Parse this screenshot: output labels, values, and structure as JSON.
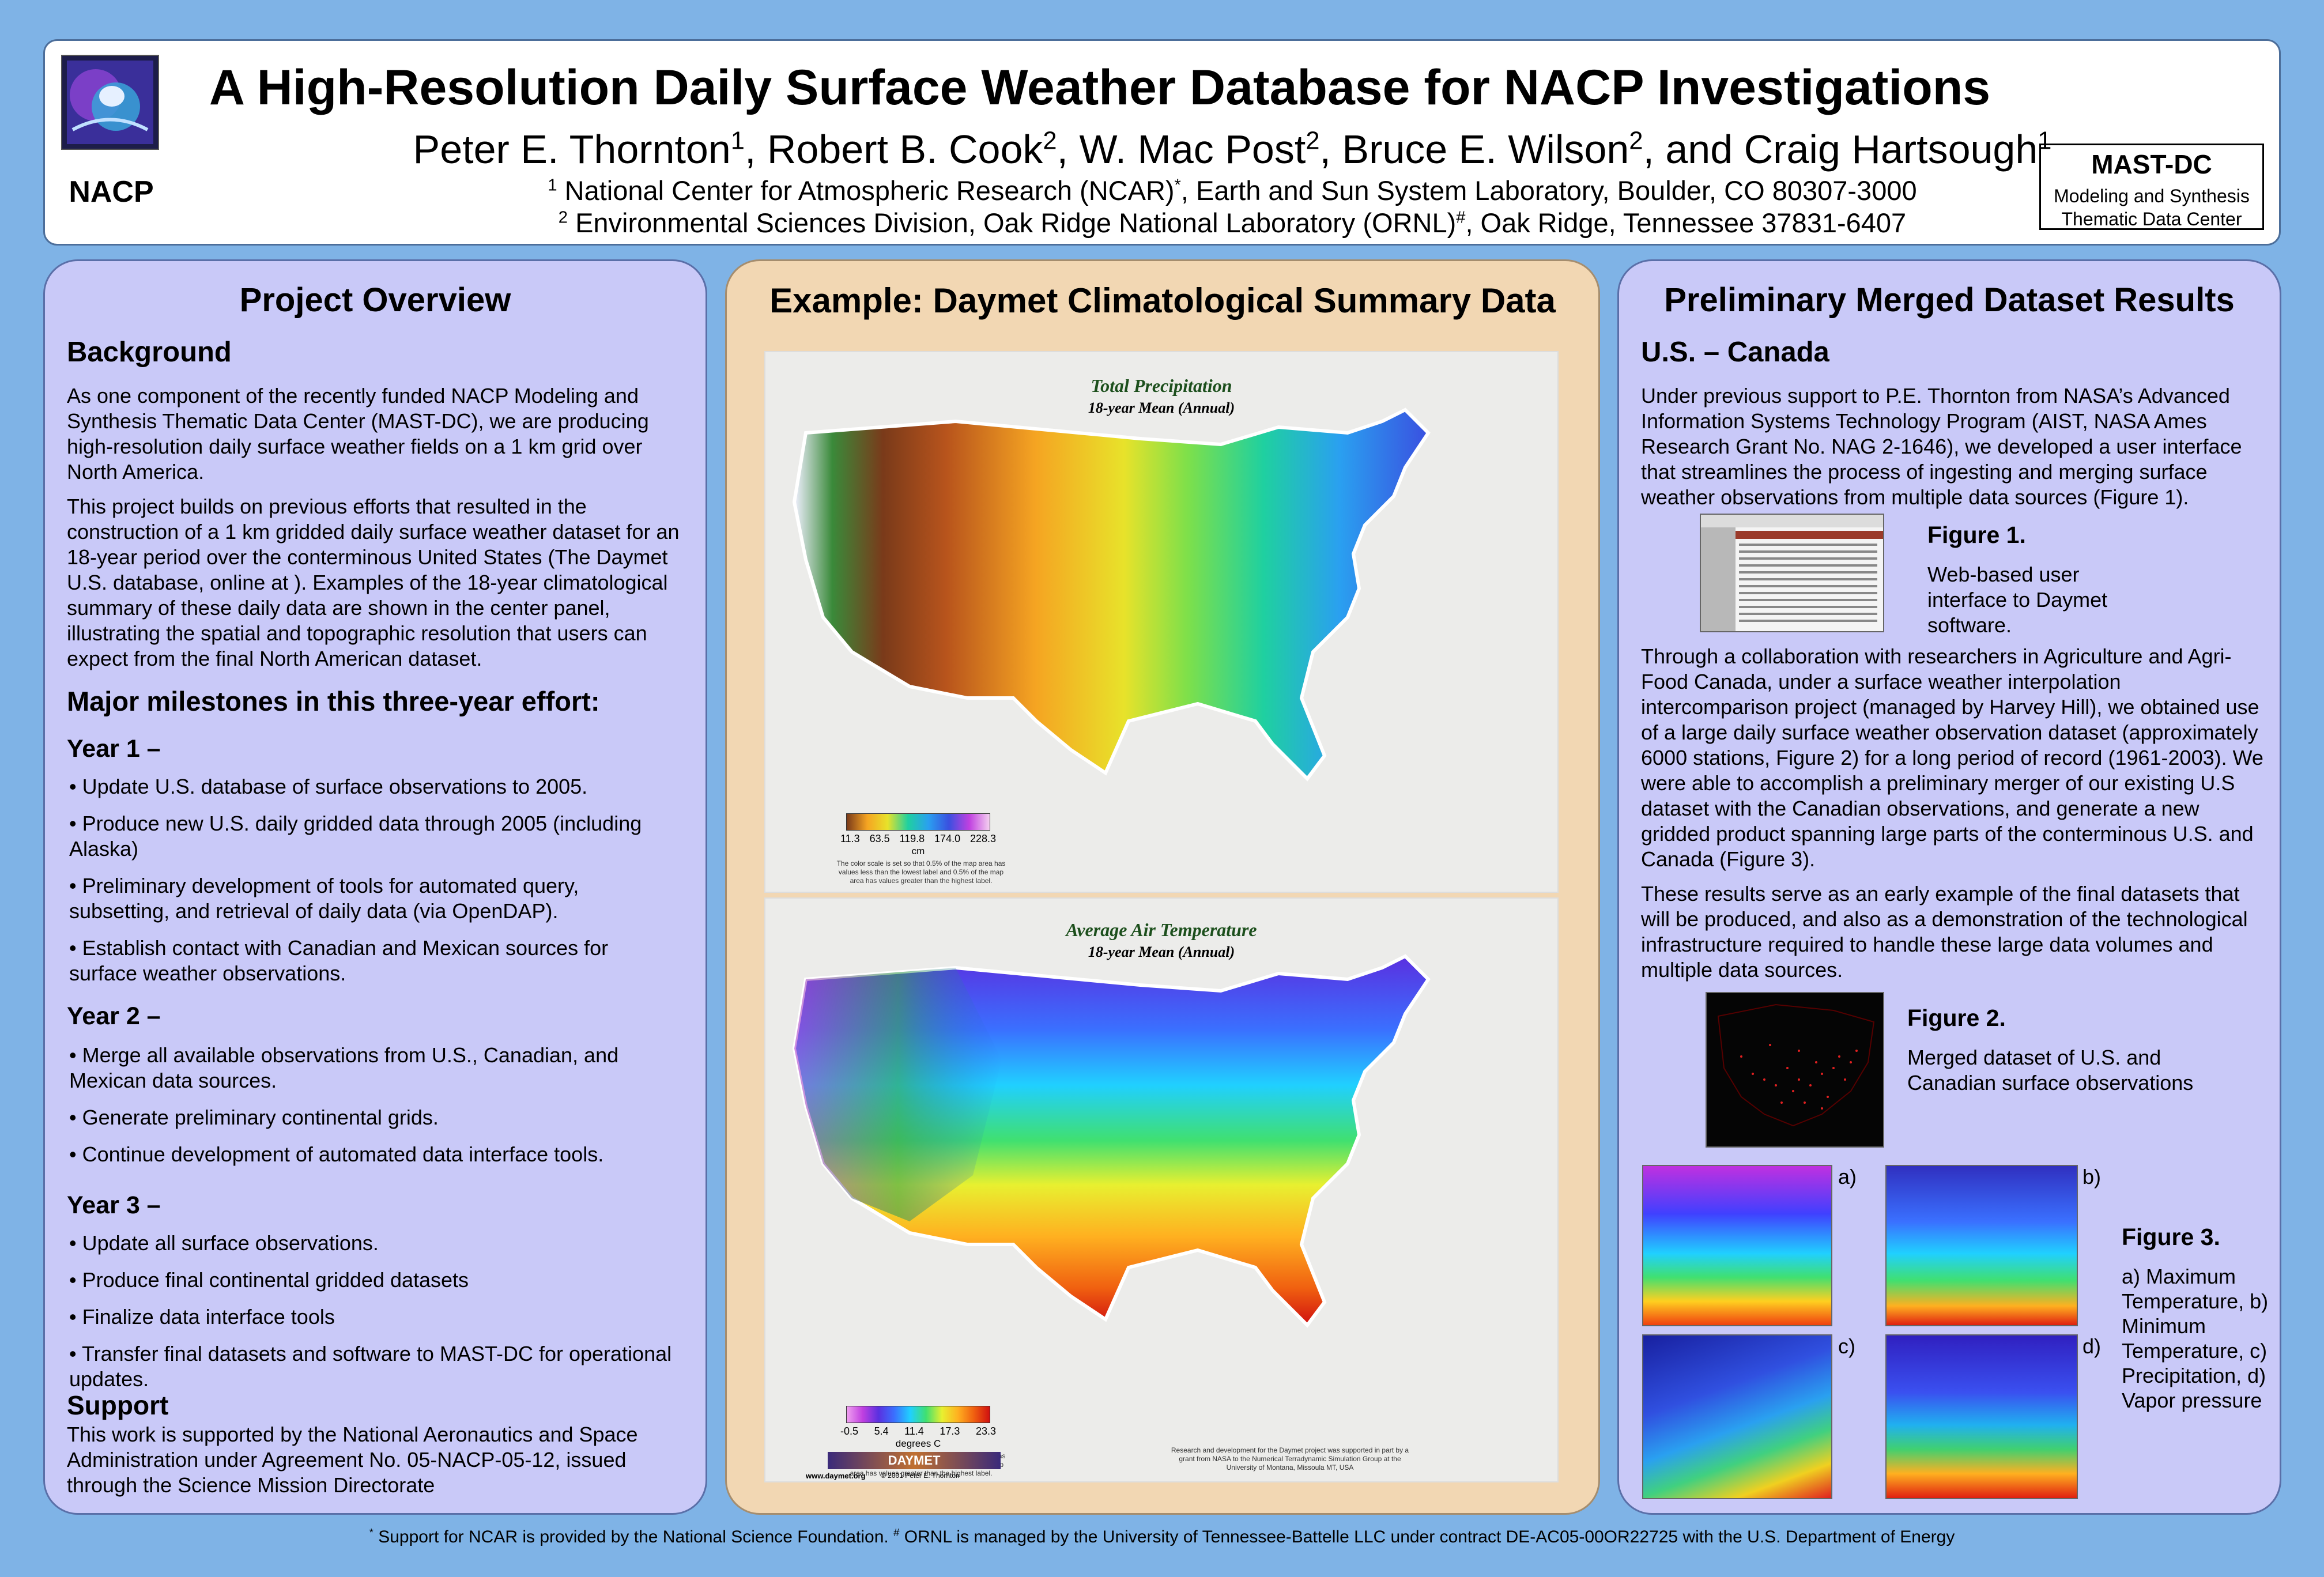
{
  "header": {
    "title": "A High-Resolution Daily Surface Weather Database for NACP Investigations",
    "logo_label": "NACP",
    "authors": [
      {
        "name": "Peter E. Thornton",
        "sup": "1"
      },
      {
        "name": "Robert B. Cook",
        "sup": "2"
      },
      {
        "name": "W. Mac Post",
        "sup": "2"
      },
      {
        "name": "Bruce E. Wilson",
        "sup": "2"
      },
      {
        "name": "and Craig Hartsough",
        "sup": "1"
      }
    ],
    "affiliation1_sup": "1",
    "affiliation1": "National Center for Atmospheric Research (NCAR)",
    "affiliation1_mark": "*",
    "affiliation1_rest": ", Earth and Sun System Laboratory, Boulder, CO 80307-3000",
    "affiliation2_sup": "2",
    "affiliation2": "Environmental Sciences Division, Oak Ridge National Laboratory (ORNL)",
    "affiliation2_mark": "#",
    "affiliation2_rest": ", Oak Ridge, Tennessee 37831-6407",
    "mastdc_title": "MAST-DC",
    "mastdc_line1": "Modeling and Synthesis",
    "mastdc_line2": "Thematic Data Center"
  },
  "left": {
    "title": "Project Overview",
    "background_heading": "Background",
    "para1": "As one component of the recently funded NACP Modeling and Synthesis Thematic Data Center (MAST-DC), we are producing high-resolution daily surface weather fields on a 1 km grid over North America.",
    "para2": "This project builds on previous efforts that resulted in the construction of a 1 km gridded daily surface weather dataset for an 18-year period over the conterminous United States (The Daymet U.S. database, online at                              ).  Examples of the 18-year climatological summary of these daily data are shown in the center panel, illustrating the spatial and topographic resolution that users can expect from the final North American dataset.",
    "milestones_heading": "Major milestones in this three-year effort:",
    "year1": "Year 1 –",
    "year1_items": [
      "Update U.S. database of surface observations to 2005.",
      "Produce new U.S. daily gridded data through 2005 (including Alaska)",
      "Preliminary development of tools for automated query, subsetting, and retrieval of daily data (via OpenDAP).",
      "Establish contact with Canadian and Mexican sources for surface weather observations."
    ],
    "year2": "Year 2 –",
    "year2_items": [
      "Merge all available observations from U.S., Canadian, and Mexican data sources.",
      "Generate preliminary continental grids.",
      "Continue development of automated data interface tools."
    ],
    "year3": "Year 3 –",
    "year3_items": [
      "Update all surface observations.",
      "Produce final continental gridded datasets",
      "Finalize data interface tools",
      "Transfer final datasets and software to MAST-DC for operational updates."
    ],
    "support_heading": "Support",
    "support_text": "This work is supported by the National Aeronautics and Space Administration under Agreement No. 05-NACP-05-12, issued through the Science Mission Directorate"
  },
  "center": {
    "title": "Example: Daymet Climatological Summary Data",
    "map1_title": "Total Precipitation",
    "map1_sub": "18-year Mean (Annual)",
    "map1_ticks": [
      "11.3",
      "63.5",
      "119.8",
      "174.0",
      "228.3"
    ],
    "map1_unit": "cm",
    "map1_note": "The color scale is set so that 0.5% of the map area has values less than the lowest label and 0.5% of the map area has values greater than the highest label.",
    "map2_title": "Average Air Temperature",
    "map2_sub": "18-year Mean (Annual)",
    "map2_ticks": [
      "-0.5",
      "5.4",
      "11.4",
      "17.3",
      "23.3"
    ],
    "map2_unit": "degrees C",
    "map2_note": "The color scale is set so that 0.5% of the map area has values less than the lowest label and 0.5% of the map area has values greater than the highest label.",
    "map2_credit": "Research and development for the Daymet project was supported in part by a grant from NASA to the Numerical Terradynamic Simulation Group at the University of Montana, Missoula MT, USA",
    "daymet_url": "www.daymet.org",
    "daymet_copyright": "© 2001 Peter E. Thornton",
    "daymet_logo": "DAYMET"
  },
  "right": {
    "title": "Preliminary Merged Dataset Results",
    "heading": "U.S. – Canada",
    "para1": "Under previous support to P.E. Thornton from NASA’s Advanced Information Systems Technology Program (AIST, NASA Ames Research Grant No. NAG 2-1646), we developed a user interface that streamlines the process of ingesting and merging surface weather observations from multiple data sources (Figure 1).",
    "fig1_title": "Figure 1.",
    "fig1_caption": "Web-based user interface to Daymet software.",
    "para2": "Through a collaboration with researchers in Agriculture and Agri-Food Canada, under a surface weather interpolation intercomparison project (managed by Harvey Hill), we obtained use of a large daily surface weather observation dataset (approximately 6000 stations, Figure 2) for a long period of record (1961-2003). We were able to accomplish a preliminary merger of our existing U.S dataset with the Canadian observations, and generate a new gridded product spanning large parts of the conterminous U.S. and Canada (Figure 3).",
    "para3": "These results serve as an early example of the final datasets that will be produced, and also as a demonstration of the technological infrastructure required to handle these large data volumes and multiple data sources.",
    "fig2_title": "Figure 2.",
    "fig2_caption": "Merged dataset of U.S. and Canadian surface observations",
    "fig3_title": "Figure 3.",
    "fig3_caption": "a) Maximum Temperature, b) Minimum Temperature, c) Precipitation, d) Vapor pressure",
    "fig3_labels": [
      "a)",
      "b)",
      "c)",
      "d)"
    ]
  },
  "footer": {
    "mark1": "*",
    "text1": " Support for NCAR is provided by the National Science Foundation.   ",
    "mark2": "#",
    "text2": " ORNL is managed by the University of Tennessee-Battelle LLC under contract DE-AC05-00OR22725 with the U.S. Department of Energy"
  }
}
